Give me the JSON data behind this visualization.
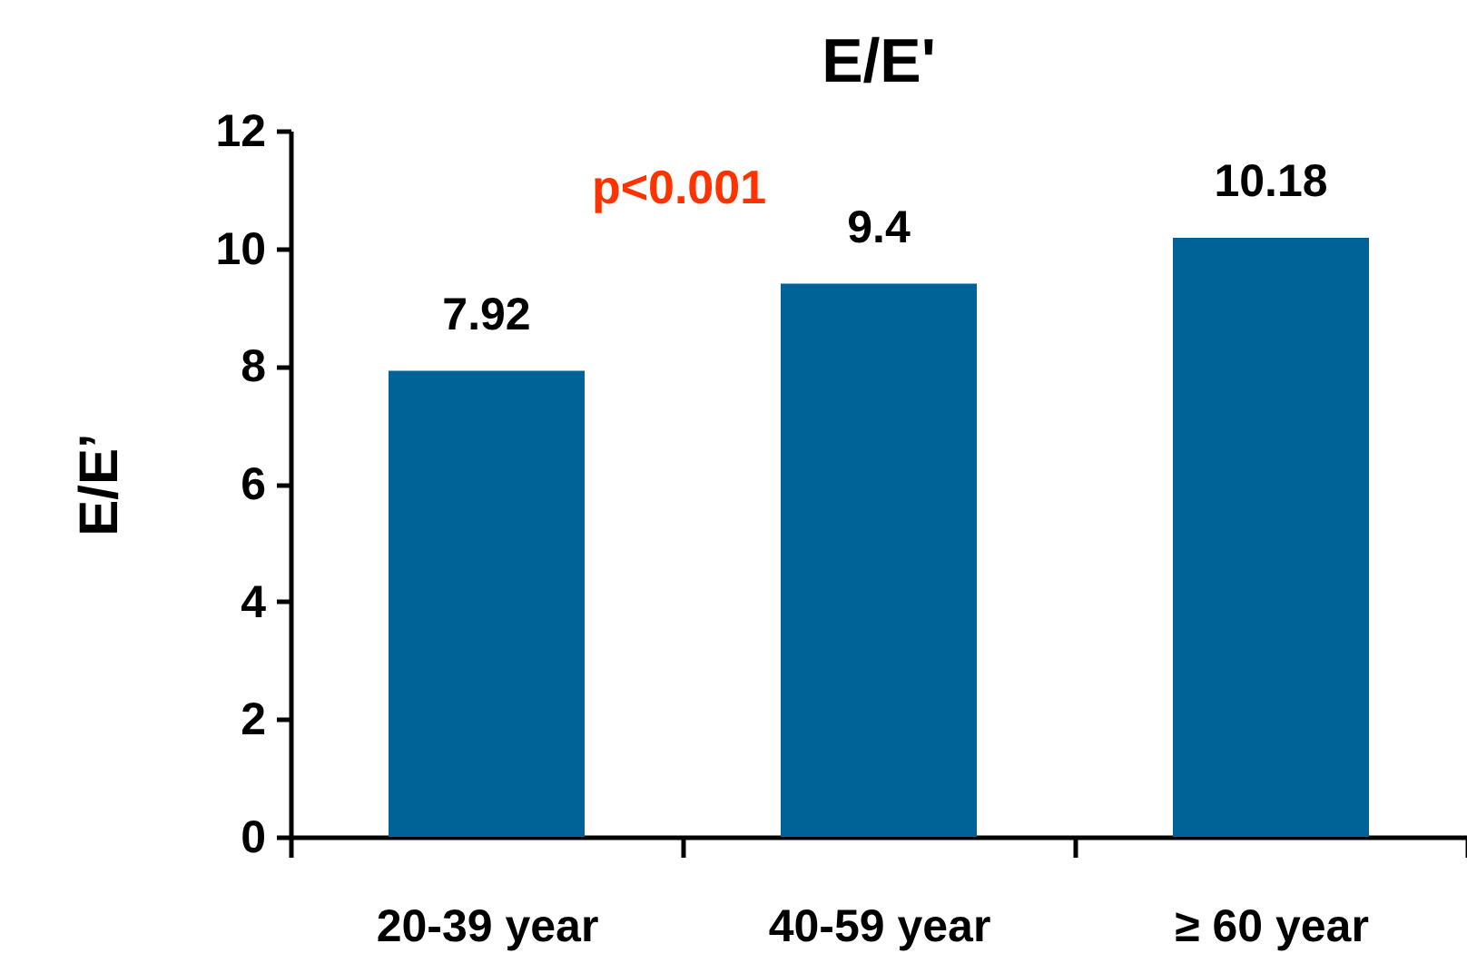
{
  "chart_data": {
    "type": "bar",
    "title": "E/E'",
    "ylabel": "E/E’",
    "categories": [
      "20-39 year",
      "40-59 year",
      "≥ 60 year"
    ],
    "values": [
      7.92,
      9.4,
      10.18
    ],
    "color": "#006398",
    "ylim": [
      0,
      12
    ],
    "yticks": [
      0,
      2,
      4,
      6,
      8,
      10,
      12
    ],
    "data_labels": true,
    "grid": false,
    "annotations": [
      "p<0.001"
    ]
  }
}
